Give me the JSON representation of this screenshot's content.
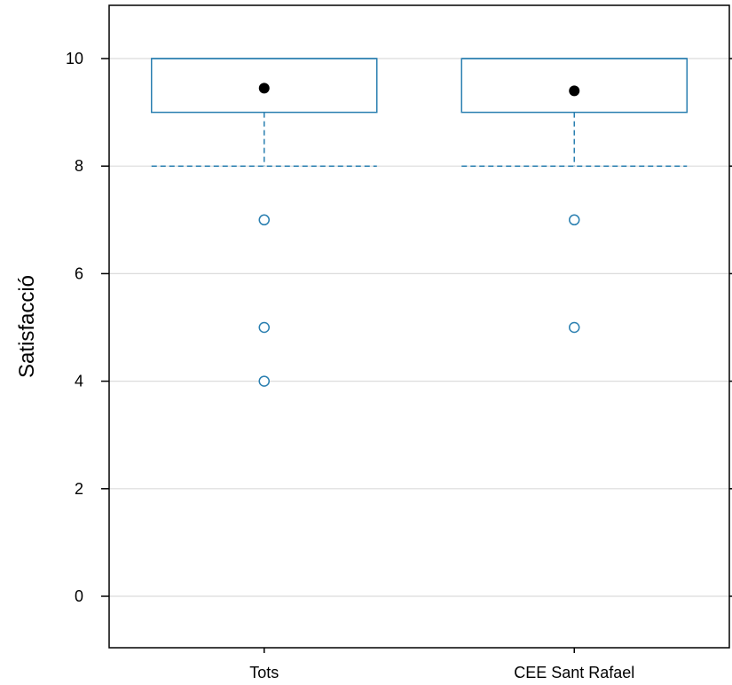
{
  "chart_data": {
    "type": "boxplot",
    "title": "",
    "xlabel": "",
    "ylabel": "Satisfacció",
    "ylim": [
      -0.95,
      11
    ],
    "yticks": [
      0,
      2,
      4,
      6,
      8,
      10
    ],
    "grid": "horizontal",
    "legend": "none",
    "categories": [
      "Tots",
      "CEE Sant Rafael"
    ],
    "boxes": [
      {
        "category": "Tots",
        "q1": 9,
        "median": 10,
        "q3": 10,
        "whisker_low": 8,
        "whisker_high": 10,
        "mean": 9.45,
        "outliers": [
          7,
          5,
          4
        ]
      },
      {
        "category": "CEE Sant Rafael",
        "q1": 9,
        "median": 10,
        "q3": 10,
        "whisker_low": 8,
        "whisker_high": 10,
        "mean": 9.4,
        "outliers": [
          7,
          5
        ]
      }
    ],
    "colors": {
      "box": "#2a7fb0",
      "mean": "#000000",
      "grid": "#dcdcdc",
      "frame": "#000000"
    }
  }
}
